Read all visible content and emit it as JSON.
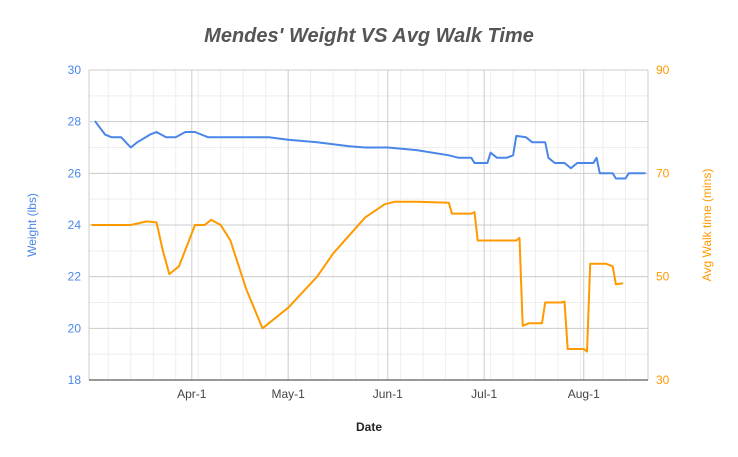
{
  "chart_data": {
    "type": "line",
    "title": "Mendes' Weight VS Avg Walk Time",
    "xlabel": "Date",
    "ylabel_left": "Weight (lbs)",
    "ylabel_right": "Avg Walk time (mins)",
    "x_ticks": [
      "Apr-1",
      "May-1",
      "Jun-1",
      "Jul-1",
      "Aug-1"
    ],
    "y_left_ticks": [
      "18",
      "20",
      "22",
      "24",
      "26",
      "28",
      "30"
    ],
    "y_right_ticks": [
      "30",
      "50",
      "70",
      "90"
    ],
    "ylim_left": [
      18,
      30
    ],
    "ylim_right": [
      30,
      90
    ],
    "grid": true,
    "colors": {
      "weight": "#4a86e8",
      "walk": "#ff9900",
      "grid": "#cccccc",
      "minor_grid": "#eeeeee"
    },
    "series": [
      {
        "name": "Weight (lbs)",
        "axis": "left",
        "points": [
          [
            "2023-03-02",
            28.0
          ],
          [
            "2023-03-05",
            27.5
          ],
          [
            "2023-03-07",
            27.4
          ],
          [
            "2023-03-10",
            27.4
          ],
          [
            "2023-03-13",
            27.0
          ],
          [
            "2023-03-15",
            27.2
          ],
          [
            "2023-03-19",
            27.5
          ],
          [
            "2023-03-21",
            27.6
          ],
          [
            "2023-03-24",
            27.4
          ],
          [
            "2023-03-27",
            27.4
          ],
          [
            "2023-03-30",
            27.6
          ],
          [
            "2023-04-02",
            27.6
          ],
          [
            "2023-04-06",
            27.4
          ],
          [
            "2023-04-10",
            27.4
          ],
          [
            "2023-04-20",
            27.4
          ],
          [
            "2023-04-25",
            27.4
          ],
          [
            "2023-05-01",
            27.3
          ],
          [
            "2023-05-10",
            27.2
          ],
          [
            "2023-05-20",
            27.05
          ],
          [
            "2023-05-25",
            27.0
          ],
          [
            "2023-06-01",
            27.0
          ],
          [
            "2023-06-10",
            26.9
          ],
          [
            "2023-06-20",
            26.7
          ],
          [
            "2023-06-23",
            26.6
          ],
          [
            "2023-06-27",
            26.6
          ],
          [
            "2023-06-28",
            26.4
          ],
          [
            "2023-07-02",
            26.4
          ],
          [
            "2023-07-03",
            26.8
          ],
          [
            "2023-07-05",
            26.6
          ],
          [
            "2023-07-08",
            26.6
          ],
          [
            "2023-07-10",
            26.7
          ],
          [
            "2023-07-11",
            27.45
          ],
          [
            "2023-07-14",
            27.4
          ],
          [
            "2023-07-16",
            27.2
          ],
          [
            "2023-07-20",
            27.2
          ],
          [
            "2023-07-21",
            26.6
          ],
          [
            "2023-07-23",
            26.4
          ],
          [
            "2023-07-26",
            26.4
          ],
          [
            "2023-07-28",
            26.2
          ],
          [
            "2023-07-30",
            26.4
          ],
          [
            "2023-08-04",
            26.4
          ],
          [
            "2023-08-05",
            26.6
          ],
          [
            "2023-08-06",
            26.0
          ],
          [
            "2023-08-10",
            26.0
          ],
          [
            "2023-08-11",
            25.8
          ],
          [
            "2023-08-14",
            25.8
          ],
          [
            "2023-08-15",
            26.0
          ],
          [
            "2023-08-20",
            26.0
          ]
        ]
      },
      {
        "name": "Avg Walk time (mins)",
        "axis": "right",
        "points": [
          [
            "2023-03-01",
            60.0
          ],
          [
            "2023-03-13",
            60.0
          ],
          [
            "2023-03-18",
            60.7
          ],
          [
            "2023-03-21",
            60.5
          ],
          [
            "2023-03-23",
            55.0
          ],
          [
            "2023-03-25",
            50.5
          ],
          [
            "2023-03-28",
            52.0
          ],
          [
            "2023-04-02",
            60.0
          ],
          [
            "2023-04-05",
            60.0
          ],
          [
            "2023-04-07",
            61.0
          ],
          [
            "2023-04-10",
            60.0
          ],
          [
            "2023-04-13",
            57.0
          ],
          [
            "2023-04-18",
            47.5
          ],
          [
            "2023-04-23",
            40.0
          ],
          [
            "2023-05-01",
            44.0
          ],
          [
            "2023-05-10",
            50.0
          ],
          [
            "2023-05-15",
            54.5
          ],
          [
            "2023-05-25",
            61.5
          ],
          [
            "2023-05-31",
            64.0
          ],
          [
            "2023-06-03",
            64.5
          ],
          [
            "2023-06-10",
            64.5
          ],
          [
            "2023-06-20",
            64.3
          ],
          [
            "2023-06-21",
            62.2
          ],
          [
            "2023-06-27",
            62.2
          ],
          [
            "2023-06-28",
            62.5
          ],
          [
            "2023-06-29",
            57.0
          ],
          [
            "2023-07-05",
            57.0
          ],
          [
            "2023-07-11",
            57.0
          ],
          [
            "2023-07-12",
            57.5
          ],
          [
            "2023-07-13",
            40.5
          ],
          [
            "2023-07-15",
            41.0
          ],
          [
            "2023-07-19",
            41.0
          ],
          [
            "2023-07-20",
            45.0
          ],
          [
            "2023-07-25",
            45.0
          ],
          [
            "2023-07-26",
            45.2
          ],
          [
            "2023-07-27",
            36.0
          ],
          [
            "2023-08-01",
            36.0
          ],
          [
            "2023-08-02",
            35.5
          ],
          [
            "2023-08-03",
            52.5
          ],
          [
            "2023-08-04",
            52.5
          ],
          [
            "2023-08-08",
            52.5
          ],
          [
            "2023-08-10",
            52.0
          ],
          [
            "2023-08-11",
            48.5
          ],
          [
            "2023-08-13",
            48.7
          ]
        ]
      }
    ]
  }
}
